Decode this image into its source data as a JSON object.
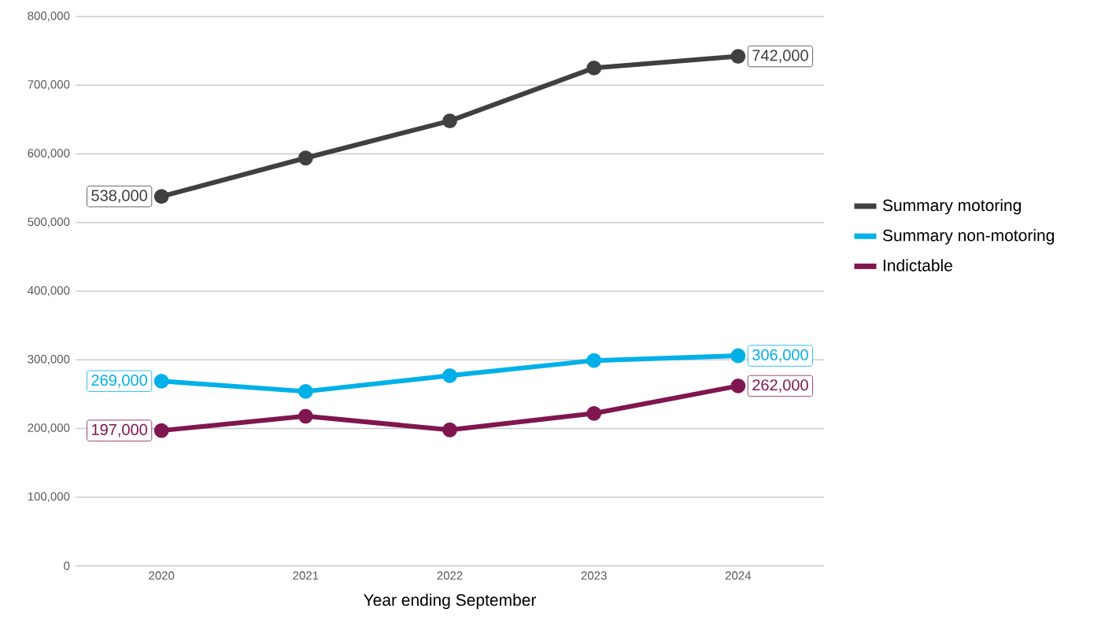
{
  "chart_data": {
    "type": "line",
    "xlabel": "Year ending September",
    "categories": [
      "2020",
      "2021",
      "2022",
      "2023",
      "2024"
    ],
    "series": [
      {
        "name": "Summary motoring",
        "color": "#404040",
        "values": [
          538000,
          594000,
          648000,
          725000,
          742000
        ],
        "value_labels": [
          "538,000",
          null,
          null,
          null,
          "742,000"
        ]
      },
      {
        "name": "Summary non-motoring",
        "color": "#00b0e8",
        "values": [
          269000,
          254000,
          277000,
          299000,
          306000
        ],
        "value_labels": [
          "269,000",
          null,
          null,
          null,
          "306,000"
        ]
      },
      {
        "name": "Indictable",
        "color": "#801650",
        "values": [
          197000,
          218000,
          198000,
          222000,
          262000
        ],
        "value_labels": [
          "197,000",
          null,
          null,
          null,
          "262,000"
        ]
      }
    ],
    "ylim": [
      0,
      800000
    ],
    "yticks": [
      {
        "value": 0,
        "label": "0"
      },
      {
        "value": 100000,
        "label": "100,000"
      },
      {
        "value": 200000,
        "label": "200,000"
      },
      {
        "value": 300000,
        "label": "300,000"
      },
      {
        "value": 400000,
        "label": "400,000"
      },
      {
        "value": 500000,
        "label": "500,000"
      },
      {
        "value": 600000,
        "label": "600,000"
      },
      {
        "value": 700000,
        "label": "700,000"
      },
      {
        "value": 800000,
        "label": "800,000"
      }
    ],
    "grid": "y",
    "legend": "right",
    "marker": "circle",
    "line_style": "solid"
  }
}
